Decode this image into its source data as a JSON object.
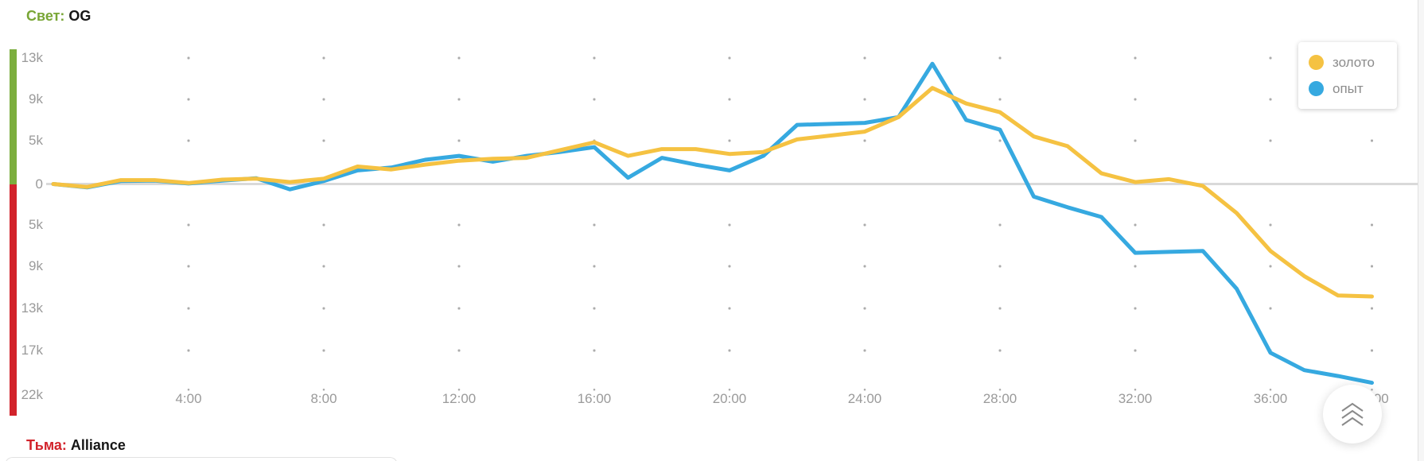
{
  "header": {
    "radiant_label": "Свет:",
    "radiant_team": "OG"
  },
  "footer": {
    "dire_label": "Тьма:",
    "dire_team": "Alliance"
  },
  "legend": {
    "items": [
      {
        "label": "золото",
        "color": "#F5C242"
      },
      {
        "label": "опыт",
        "color": "#36A9E0"
      }
    ]
  },
  "colors": {
    "radiant_accent": "#79A636",
    "dire_accent": "#D2232B",
    "axis_positive_bar": "#7CAE3E",
    "axis_negative_bar": "#D2232B",
    "zero_line": "#d9d9d9",
    "grid_dot": "#ababab",
    "tick_text": "#9a9a9a",
    "legend_text": "#8c8c8c"
  },
  "scroll_top_button": {
    "icon": "double-chevron-up-icon"
  },
  "chart_data": {
    "type": "line",
    "title": "",
    "xlabel": "",
    "ylabel": "",
    "x_unit": "minutes",
    "xlim_minutes": [
      0,
      39
    ],
    "ylim": [
      -22500,
      13500
    ],
    "grid": "dotted",
    "legend_position": "top-right",
    "x_tick_minutes": [
      4,
      8,
      12,
      16,
      20,
      24,
      28,
      32,
      36,
      39
    ],
    "x_tick_labels": [
      "4:00",
      "8:00",
      "12:00",
      "16:00",
      "20:00",
      "24:00",
      "28:00",
      "32:00",
      "36:00",
      "39:00"
    ],
    "y_tick_values": [
      13000,
      9000,
      5000,
      0,
      -5000,
      -9000,
      -13000,
      -17000,
      -22000
    ],
    "y_tick_labels": [
      "13k",
      "9k",
      "5k",
      "0",
      "5k",
      "9k",
      "13k",
      "17k",
      "22k"
    ],
    "x_minutes": [
      0,
      1,
      2,
      3,
      4,
      5,
      6,
      7,
      8,
      9,
      10,
      11,
      12,
      13,
      14,
      15,
      16,
      17,
      18,
      19,
      20,
      21,
      22,
      23,
      24,
      25,
      26,
      27,
      28,
      29,
      30,
      31,
      32,
      33,
      34,
      35,
      36,
      37,
      38,
      39
    ],
    "series": [
      {
        "name": "золото",
        "color": "#F5C242",
        "values": [
          0,
          -300,
          400,
          400,
          100,
          450,
          550,
          200,
          550,
          1800,
          1500,
          2000,
          2400,
          2600,
          2700,
          3500,
          4300,
          2900,
          3600,
          3600,
          3100,
          3300,
          4600,
          5000,
          5400,
          6900,
          9900,
          8300,
          7400,
          4900,
          3900,
          1100,
          200,
          500,
          -200,
          -3000,
          -6900,
          -9500,
          -11500,
          -11600
        ]
      },
      {
        "name": "опыт",
        "color": "#36A9E0",
        "values": [
          0,
          -350,
          300,
          350,
          50,
          350,
          600,
          -550,
          300,
          1400,
          1700,
          2500,
          2900,
          2300,
          2900,
          3300,
          3800,
          650,
          2700,
          2000,
          1400,
          2900,
          6100,
          6200,
          6300,
          6900,
          12400,
          6600,
          5600,
          -1300,
          -2400,
          -3400,
          -7100,
          -7000,
          -6900,
          -10800,
          -17400,
          -19200,
          -19800,
          -20500
        ]
      }
    ]
  }
}
